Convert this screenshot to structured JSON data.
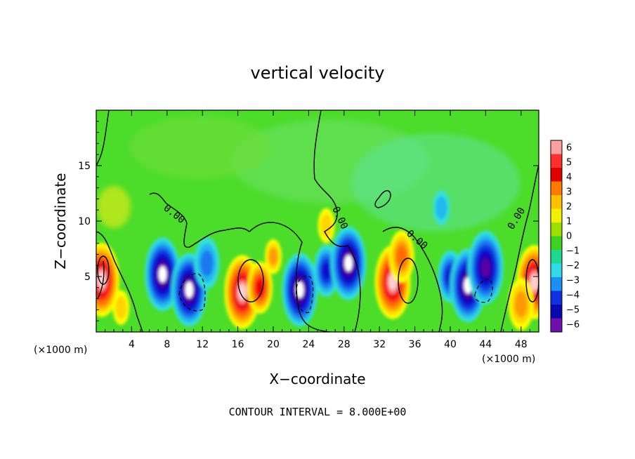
{
  "chart_data": {
    "type": "heatmap",
    "title": "vertical velocity",
    "xlabel": "X−coordinate",
    "ylabel": "Z−coordinate",
    "x_unit": "(×1000 m)",
    "z_unit": "(×1000 m)",
    "xlim": [
      0,
      50
    ],
    "ylim": [
      0,
      20
    ],
    "x_ticks": [
      4,
      8,
      12,
      16,
      20,
      24,
      28,
      32,
      36,
      40,
      44,
      48
    ],
    "y_ticks": [
      5,
      10,
      15
    ],
    "colorbar": {
      "levels": [
        6,
        5,
        4,
        3,
        2,
        1,
        0,
        -1,
        -2,
        -3,
        -4,
        -5,
        -6
      ],
      "labels": [
        "6",
        "5",
        "4",
        "3",
        "2",
        "1",
        "0",
        "−1",
        "−2",
        "−3",
        "−4",
        "−5",
        "−6"
      ]
    },
    "contour_labels": [
      "0.00",
      "0.00",
      "0.00",
      "0.00"
    ],
    "contour_interval_text": "CONTOUR INTERVAL = 8.000E+00",
    "features": [
      {
        "x": 0.6,
        "z": 4.7,
        "w": 12
      },
      {
        "x": 2.8,
        "z": 2.2,
        "w": 3.5
      },
      {
        "x": 7.5,
        "z": 5.2,
        "w": -12
      },
      {
        "x": 10.5,
        "z": 3.8,
        "w": -12
      },
      {
        "x": 12.5,
        "z": 6.2,
        "w": -5
      },
      {
        "x": 16.5,
        "z": 3.6,
        "w": 12
      },
      {
        "x": 18.5,
        "z": 4.0,
        "w": 9
      },
      {
        "x": 20.0,
        "z": 6.8,
        "w": 4
      },
      {
        "x": 23.0,
        "z": 3.8,
        "w": -12
      },
      {
        "x": 26.0,
        "z": 5.5,
        "w": -8
      },
      {
        "x": 28.5,
        "z": 6.2,
        "w": -12
      },
      {
        "x": 26.0,
        "z": 9.6,
        "w": 2.5
      },
      {
        "x": 33.5,
        "z": 4.5,
        "w": 12
      },
      {
        "x": 34.5,
        "z": 6.8,
        "w": 6
      },
      {
        "x": 40.0,
        "z": 5.0,
        "w": -8
      },
      {
        "x": 42.0,
        "z": 4.2,
        "w": -12
      },
      {
        "x": 44.0,
        "z": 5.8,
        "w": -10
      },
      {
        "x": 39.0,
        "z": 11.2,
        "w": -2.5
      },
      {
        "x": 49.5,
        "z": 4.5,
        "w": 12
      },
      {
        "x": 48.0,
        "z": 2.5,
        "w": 5
      }
    ]
  }
}
